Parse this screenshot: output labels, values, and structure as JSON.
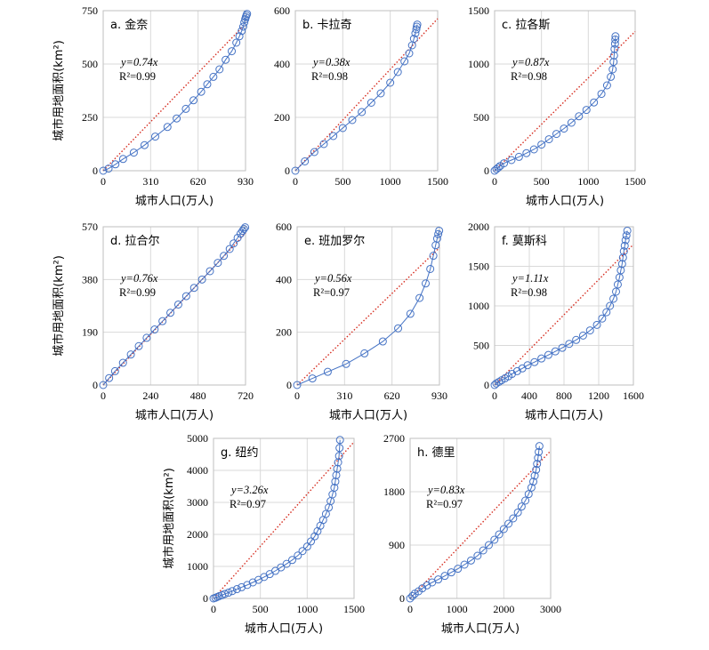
{
  "chart_data": [
    {
      "type": "scatter",
      "title": "a. 金奈",
      "xlabel": "城市人口(万人)",
      "ylabel": "城市用地面积(km²)",
      "xlim": [
        0,
        930
      ],
      "ylim": [
        0,
        750
      ],
      "xticks": [
        0,
        310,
        620,
        930
      ],
      "yticks": [
        0,
        250,
        500,
        750
      ],
      "equation": "y=0.74x",
      "r2": "R²=0.99",
      "fit_slope": 0.74,
      "x": [
        0,
        35,
        80,
        130,
        200,
        270,
        340,
        420,
        480,
        540,
        590,
        640,
        680,
        720,
        760,
        800,
        840,
        870,
        890,
        905,
        915,
        922,
        928,
        932,
        936,
        940
      ],
      "y": [
        0,
        10,
        30,
        55,
        85,
        120,
        160,
        205,
        245,
        290,
        330,
        370,
        405,
        440,
        475,
        520,
        560,
        600,
        630,
        655,
        675,
        695,
        710,
        720,
        728,
        735
      ]
    },
    {
      "type": "scatter",
      "title": "b. 卡拉奇",
      "xlabel": "",
      "ylabel": "",
      "xlim": [
        0,
        1500
      ],
      "ylim": [
        0,
        600
      ],
      "xticks": [
        0,
        500,
        1000,
        1500
      ],
      "yticks": [
        0,
        200,
        400,
        600
      ],
      "equation": "y=0.38x",
      "r2": "R²=0.98",
      "fit_slope": 0.38,
      "x": [
        0,
        100,
        200,
        300,
        400,
        500,
        600,
        700,
        800,
        900,
        1000,
        1080,
        1150,
        1200,
        1230,
        1250,
        1265,
        1275,
        1280,
        1285
      ],
      "y": [
        0,
        35,
        70,
        100,
        130,
        160,
        190,
        220,
        255,
        290,
        330,
        370,
        410,
        440,
        470,
        495,
        515,
        530,
        540,
        548
      ]
    },
    {
      "type": "scatter",
      "title": "c. 拉各斯",
      "xlabel": "城市人口(万人)",
      "ylabel": "",
      "xlim": [
        0,
        1500
      ],
      "ylim": [
        0,
        1500
      ],
      "xticks": [
        0,
        500,
        1000,
        1500
      ],
      "yticks": [
        0,
        500,
        1000,
        1500
      ],
      "equation": "y=0.87x",
      "r2": "R²=0.98",
      "fit_slope": 0.87,
      "x": [
        0,
        20,
        40,
        60,
        100,
        180,
        260,
        340,
        420,
        500,
        580,
        660,
        740,
        820,
        900,
        980,
        1060,
        1140,
        1200,
        1240,
        1260,
        1270,
        1275,
        1280,
        1285,
        1288,
        1290
      ],
      "y": [
        0,
        15,
        30,
        45,
        70,
        100,
        130,
        165,
        200,
        245,
        295,
        345,
        395,
        450,
        510,
        570,
        640,
        720,
        800,
        880,
        950,
        1020,
        1080,
        1140,
        1190,
        1230,
        1260
      ]
    },
    {
      "type": "scatter",
      "title": "d. 拉合尔",
      "xlabel": "城市人口(万人)",
      "ylabel": "城市用地面积(km²)",
      "xlim": [
        0,
        720
      ],
      "ylim": [
        0,
        570
      ],
      "xticks": [
        0,
        240,
        480,
        720
      ],
      "yticks": [
        0,
        190,
        380,
        570
      ],
      "equation": "y=0.76x",
      "r2": "R²=0.99",
      "fit_slope": 0.76,
      "x": [
        0,
        30,
        60,
        100,
        140,
        180,
        220,
        260,
        300,
        340,
        380,
        420,
        460,
        500,
        540,
        580,
        610,
        640,
        660,
        680,
        695,
        705,
        712,
        718
      ],
      "y": [
        0,
        25,
        50,
        80,
        110,
        140,
        170,
        200,
        230,
        260,
        290,
        320,
        350,
        380,
        410,
        440,
        465,
        490,
        510,
        530,
        545,
        555,
        562,
        568
      ]
    },
    {
      "type": "scatter",
      "title": "e. 班加罗尔",
      "xlabel": "城市人口(万人)",
      "ylabel": "",
      "xlim": [
        0,
        930
      ],
      "ylim": [
        0,
        600
      ],
      "xticks": [
        0,
        310,
        620,
        930
      ],
      "yticks": [
        0,
        200,
        400,
        600
      ],
      "equation": "y=0.56x",
      "r2": "R²=0.97",
      "fit_slope": 0.56,
      "x": [
        0,
        100,
        200,
        320,
        440,
        560,
        660,
        740,
        800,
        840,
        870,
        890,
        905,
        915,
        922,
        928
      ],
      "y": [
        0,
        25,
        50,
        80,
        120,
        165,
        215,
        270,
        330,
        385,
        440,
        490,
        530,
        555,
        572,
        585
      ]
    },
    {
      "type": "scatter",
      "title": "f. 莫斯科",
      "xlabel": "城市人口(万人)",
      "ylabel": "",
      "xlim": [
        0,
        1600
      ],
      "ylim": [
        0,
        2000
      ],
      "xticks": [
        0,
        400,
        800,
        1200,
        1600
      ],
      "yticks": [
        0,
        500,
        1000,
        1500,
        2000
      ],
      "equation": "y=1.11x",
      "r2": "R²=0.98",
      "fit_slope": 1.11,
      "x": [
        0,
        20,
        50,
        80,
        120,
        160,
        200,
        260,
        320,
        380,
        460,
        540,
        620,
        700,
        780,
        860,
        940,
        1020,
        1100,
        1180,
        1240,
        1290,
        1330,
        1370,
        1400,
        1420,
        1440,
        1455,
        1470,
        1480,
        1490,
        1500,
        1510,
        1520,
        1530
      ],
      "y": [
        0,
        20,
        40,
        60,
        85,
        110,
        140,
        175,
        210,
        250,
        290,
        335,
        380,
        425,
        470,
        520,
        570,
        625,
        690,
        760,
        840,
        920,
        1000,
        1090,
        1180,
        1270,
        1360,
        1450,
        1530,
        1610,
        1690,
        1760,
        1830,
        1890,
        1950
      ]
    },
    {
      "type": "scatter",
      "title": "g. 纽约",
      "xlabel": "城市人口(万人)",
      "ylabel": "城市用地面积(km²)",
      "xlim": [
        0,
        1500
      ],
      "ylim": [
        0,
        5000
      ],
      "xticks": [
        0,
        500,
        1000,
        1500
      ],
      "yticks": [
        0,
        1000,
        2000,
        3000,
        4000,
        5000
      ],
      "equation": "y=3.26x",
      "r2": "R²=0.97",
      "fit_slope": 3.26,
      "x": [
        0,
        20,
        40,
        60,
        90,
        120,
        160,
        200,
        250,
        300,
        360,
        420,
        480,
        540,
        600,
        660,
        720,
        780,
        840,
        900,
        950,
        1000,
        1040,
        1080,
        1110,
        1140,
        1170,
        1200,
        1230,
        1250,
        1270,
        1290,
        1300,
        1310,
        1320,
        1330,
        1340,
        1345,
        1350
      ],
      "y": [
        0,
        20,
        45,
        70,
        100,
        140,
        180,
        230,
        290,
        350,
        420,
        500,
        580,
        670,
        760,
        860,
        970,
        1080,
        1200,
        1340,
        1480,
        1620,
        1780,
        1940,
        2100,
        2270,
        2450,
        2640,
        2840,
        3040,
        3250,
        3460,
        3650,
        3850,
        4050,
        4250,
        4450,
        4700,
        4950
      ]
    },
    {
      "type": "scatter",
      "title": "h. 德里",
      "xlabel": "城市人口(万人)",
      "ylabel": "",
      "xlim": [
        0,
        3000
      ],
      "ylim": [
        0,
        2700
      ],
      "xticks": [
        0,
        1000,
        2000,
        3000
      ],
      "yticks": [
        0,
        900,
        1800,
        2700
      ],
      "equation": "y=0.83x",
      "r2": "R²=0.97",
      "fit_slope": 0.83,
      "x": [
        0,
        50,
        100,
        180,
        260,
        360,
        470,
        600,
        740,
        880,
        1020,
        1160,
        1300,
        1440,
        1560,
        1680,
        1800,
        1900,
        2000,
        2100,
        2200,
        2300,
        2380,
        2460,
        2530,
        2590,
        2630,
        2660,
        2690,
        2710,
        2730,
        2745,
        2760
      ],
      "y": [
        0,
        40,
        80,
        120,
        170,
        220,
        270,
        320,
        380,
        440,
        500,
        570,
        640,
        720,
        810,
        900,
        990,
        1080,
        1170,
        1260,
        1350,
        1450,
        1550,
        1650,
        1760,
        1870,
        1970,
        2070,
        2170,
        2270,
        2370,
        2470,
        2570
      ]
    }
  ]
}
